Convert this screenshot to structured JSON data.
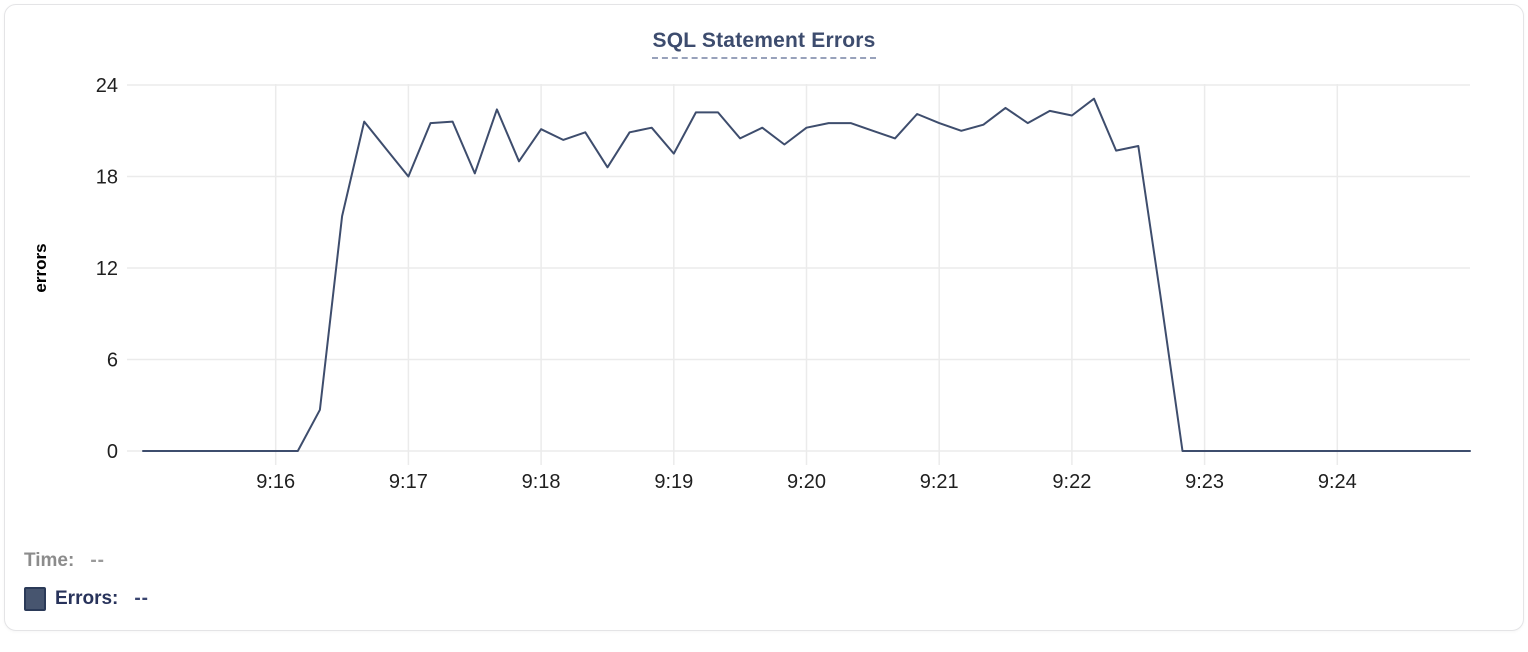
{
  "chart_data": {
    "type": "line",
    "title": "SQL Statement Errors",
    "ylabel": "errors",
    "xlabel": "",
    "x_start": "9:15:00",
    "x_interval_seconds": 10,
    "x_tick_labels": [
      "9:16",
      "9:17",
      "9:18",
      "9:19",
      "9:20",
      "9:21",
      "9:22",
      "9:23",
      "9:24"
    ],
    "x_tick_indices": [
      6,
      12,
      18,
      24,
      30,
      36,
      42,
      48,
      54
    ],
    "y_ticks": [
      0,
      6,
      12,
      18,
      24
    ],
    "ylim": [
      0,
      24
    ],
    "grid": true,
    "legend_position": "bottom-left",
    "series": [
      {
        "name": "Errors",
        "color": "#3e4d6d",
        "values": [
          0,
          0,
          0,
          0,
          0,
          0,
          0,
          0,
          2.7,
          15.4,
          21.6,
          19.8,
          18,
          21.5,
          21.6,
          18.2,
          22.4,
          19,
          21.1,
          20.4,
          20.9,
          18.6,
          20.9,
          21.2,
          19.5,
          22.2,
          22.2,
          20.5,
          21.2,
          20.1,
          21.2,
          21.5,
          21.5,
          21,
          20.5,
          22.1,
          21.5,
          21,
          21.4,
          22.5,
          21.5,
          22.3,
          22,
          23.1,
          19.7,
          20,
          10.2,
          0,
          0,
          0,
          0,
          0,
          0,
          0,
          0,
          0,
          0,
          0,
          0,
          0,
          0
        ]
      }
    ],
    "colors": {
      "grid": "#ebebeb",
      "tick_text": "#1f1f1f",
      "axis_label": "#000000",
      "title": "#3d4c6e",
      "title_underline": "#98a2bb"
    }
  },
  "legend": {
    "time_label": "Time:",
    "time_value": "--",
    "time_label_color": "#8c8c8c",
    "time_value_color": "#9a9a9a",
    "errors_label": "Errors:",
    "errors_value": "--",
    "errors_label_color": "#28335b",
    "errors_value_color": "#3a4570",
    "swatch_color": "#47556f",
    "swatch_border": "#2b3a58"
  }
}
